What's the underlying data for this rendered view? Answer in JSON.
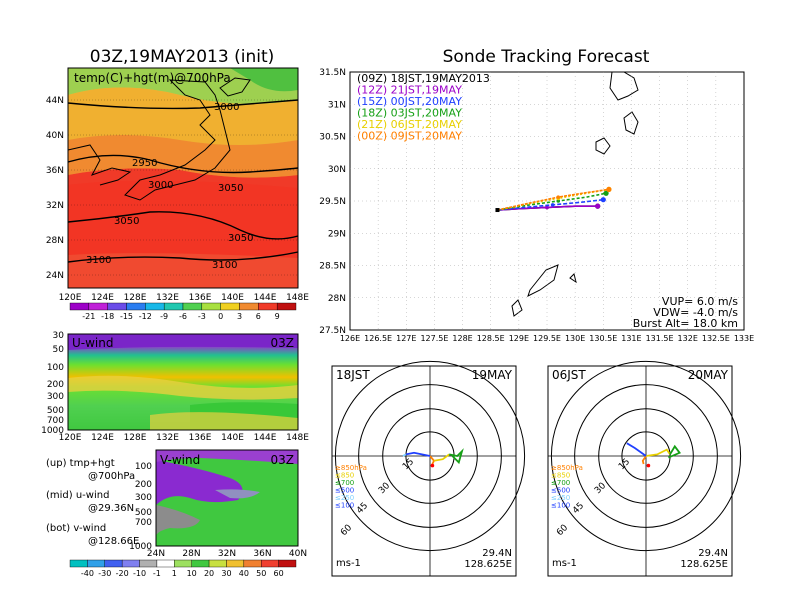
{
  "colors": {
    "black": "#000000",
    "purple": "#9b00c8",
    "blue": "#2040ff",
    "green": "#16a016",
    "yellow": "#e8d000",
    "orange": "#ff8000"
  },
  "left": {
    "title": "03Z,19MAY2013 (init)",
    "panel_label": "temp(C)+hgt(m)@700hPa",
    "lat_ticks": [
      "44N",
      "40N",
      "36N",
      "32N",
      "28N",
      "24N"
    ],
    "lon_ticks": [
      "120E",
      "124E",
      "128E",
      "132E",
      "136E",
      "140E",
      "144E",
      "148E"
    ],
    "contour_labels": [
      "3000",
      "2950",
      "3000",
      "3050",
      "3050",
      "3050",
      "3100",
      "3100"
    ],
    "temp_colorbar": [
      "-21",
      "-18",
      "-15",
      "-12",
      "-9",
      "-6",
      "-3",
      "0",
      "3",
      "6",
      "9"
    ]
  },
  "uwind": {
    "label": "U-wind",
    "time": "03Z",
    "p_ticks": [
      "30",
      "50",
      "100",
      "200",
      "300",
      "500",
      "700",
      "1000"
    ],
    "lon_ticks": [
      "120E",
      "124E",
      "128E",
      "132E",
      "136E",
      "140E",
      "144E",
      "148E"
    ]
  },
  "vwind": {
    "label": "V-wind",
    "time": "03Z",
    "p_ticks": [
      "100",
      "200",
      "300",
      "500",
      "700",
      "1000"
    ],
    "lat_ticks": [
      "24N",
      "28N",
      "32N",
      "36N",
      "40N"
    ],
    "colorbar": [
      "-40",
      "-30",
      "-20",
      "-10",
      "-1",
      "1",
      "10",
      "20",
      "30",
      "40",
      "50",
      "60"
    ]
  },
  "notes": [
    {
      "l1": "(up) tmp+hgt",
      "l2": "@700hPa"
    },
    {
      "l1": "(mid) u-wind",
      "l2": "@29.36N"
    },
    {
      "l1": "(bot) v-wind",
      "l2": "@128.66E"
    }
  ],
  "tracking": {
    "title": "Sonde Tracking Forecast",
    "legend": [
      {
        "label": "(09Z) 18JST,19MAY2013",
        "color": "#000000"
      },
      {
        "label": "(12Z) 21JST,19MAY",
        "color": "#9b00c8"
      },
      {
        "label": "(15Z) 00JST,20MAY",
        "color": "#2040ff"
      },
      {
        "label": "(18Z) 03JST,20MAY",
        "color": "#16a016"
      },
      {
        "label": "(21Z) 06JST,20MAY",
        "color": "#e8d000"
      },
      {
        "label": "(00Z) 09JST,20MAY",
        "color": "#ff8000"
      }
    ],
    "params": [
      "VUP= 6.0 m/s",
      "VDW= -4.0 m/s",
      "Burst Alt= 18.0 km"
    ],
    "lat_ticks": [
      "31.5N",
      "31N",
      "30.5N",
      "30N",
      "29.5N",
      "29N",
      "28.5N",
      "28N",
      "27.5N"
    ],
    "lon_ticks": [
      "126E",
      "126.5E",
      "127E",
      "127.5E",
      "128E",
      "128.5E",
      "129E",
      "129.5E",
      "130E",
      "130.5E",
      "131E",
      "131.5E",
      "132E",
      "132.5E",
      "133E"
    ]
  },
  "chart_data": [
    {
      "type": "line",
      "title": "Sonde Tracking Forecast",
      "xlim": [
        126,
        133
      ],
      "ylim": [
        27.5,
        31.5
      ],
      "series": [
        {
          "name": "(09Z) 18JST,19MAY2013",
          "x": [
            128.62,
            129.0,
            129.5,
            130.0,
            130.4
          ],
          "y": [
            29.36,
            29.38,
            29.4,
            29.42,
            29.42
          ]
        },
        {
          "name": "(12Z) 21JST,19MAY",
          "x": [
            128.62,
            129.0,
            129.5,
            130.0,
            130.4
          ],
          "y": [
            29.36,
            29.38,
            29.4,
            29.42,
            29.42
          ]
        },
        {
          "name": "(15Z) 00JST,20MAY",
          "x": [
            128.62,
            129.1,
            129.6,
            130.1,
            130.5
          ],
          "y": [
            29.36,
            29.4,
            29.44,
            29.48,
            29.52
          ]
        },
        {
          "name": "(18Z) 03JST,20MAY",
          "x": [
            128.62,
            129.2,
            129.7,
            130.2,
            130.55
          ],
          "y": [
            29.36,
            29.44,
            29.5,
            29.56,
            29.62
          ]
        },
        {
          "name": "(21Z) 06JST,20MAY",
          "x": [
            128.62,
            129.2,
            129.7,
            130.2,
            130.6
          ],
          "y": [
            29.36,
            29.46,
            29.54,
            29.62,
            29.68
          ]
        },
        {
          "name": "(00Z) 09JST,20MAY",
          "x": [
            128.62,
            129.2,
            129.7,
            130.2,
            130.6
          ],
          "y": [
            29.36,
            29.47,
            29.56,
            29.63,
            29.68
          ]
        }
      ]
    },
    {
      "type": "line",
      "title": "",
      "series": [
        {
          "name": "≥850hPa",
          "color": "#ff8000",
          "points": [
            [
              0,
              0
            ],
            [
              0.5,
              -0.6
            ],
            [
              0.2,
              -1.2
            ]
          ]
        },
        {
          "name": "≤850",
          "color": "#e8d000",
          "points": [
            [
              0.5,
              -0.6
            ],
            [
              1.6,
              -0.4
            ],
            [
              2.4,
              0.2
            ]
          ]
        },
        {
          "name": "≤700",
          "color": "#16a016",
          "points": [
            [
              2.4,
              0.2
            ],
            [
              3.4,
              0.0
            ],
            [
              4.0,
              0.6
            ],
            [
              3.6,
              -0.8
            ],
            [
              2.8,
              0.0
            ]
          ]
        },
        {
          "name": "≤500",
          "color": "#2040ff",
          "points": [
            [
              0,
              0
            ],
            [
              -1.0,
              0.2
            ],
            [
              -2.0,
              0.4
            ],
            [
              -3.0,
              0.2
            ]
          ]
        },
        {
          "name": "≤250",
          "color": "#7fd0ff",
          "points": [
            [
              -3.0,
              0.2
            ],
            [
              -3.4,
              0.0
            ]
          ]
        },
        {
          "name": "≤100",
          "color": "#2040ff",
          "points": []
        }
      ],
      "left_label": "18JST",
      "right_label": "19MAY",
      "rings": [
        "15",
        "30",
        "45",
        "60"
      ],
      "unit": "ms-1",
      "loc_lat": "29.4N",
      "loc_lon": "128.625E"
    },
    {
      "type": "line",
      "title": "",
      "series": [
        {
          "name": "≥850hPa",
          "color": "#ff8000",
          "points": [
            [
              0,
              0
            ],
            [
              -0.4,
              -0.6
            ],
            [
              -0.3,
              -1.0
            ]
          ]
        },
        {
          "name": "≤850",
          "color": "#e8d000",
          "points": [
            [
              0,
              0
            ],
            [
              1.4,
              0.2
            ],
            [
              2.6,
              0.8
            ],
            [
              3.0,
              0.2
            ]
          ]
        },
        {
          "name": "≤700",
          "color": "#16a016",
          "points": [
            [
              3.0,
              0.2
            ],
            [
              3.6,
              1.2
            ],
            [
              4.2,
              0.4
            ],
            [
              2.8,
              -0.2
            ]
          ]
        },
        {
          "name": "≤500",
          "color": "#2040ff",
          "points": [
            [
              0,
              0
            ],
            [
              -1.4,
              1.0
            ],
            [
              -2.4,
              1.6
            ]
          ]
        },
        {
          "name": "≤250",
          "color": "#7fd0ff",
          "points": []
        },
        {
          "name": "≤100",
          "color": "#2040ff",
          "points": []
        }
      ],
      "left_label": "06JST",
      "right_label": "20MAY",
      "rings": [
        "15",
        "30",
        "45",
        "60"
      ],
      "unit": "ms-1",
      "loc_lat": "29.4N",
      "loc_lon": "128.625E"
    }
  ]
}
